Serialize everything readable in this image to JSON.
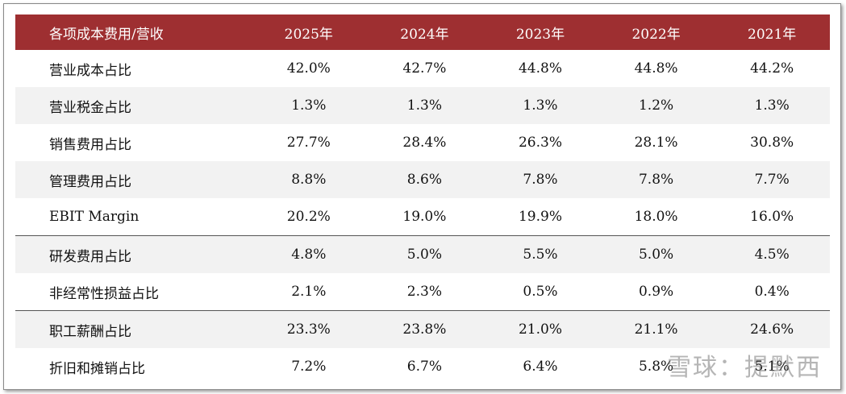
{
  "table": {
    "header": [
      "各项成本费用/营收",
      "2025年",
      "2024年",
      "2023年",
      "2022年",
      "2021年"
    ],
    "rows": [
      [
        "营业成本占比",
        "42.0%",
        "42.7%",
        "44.8%",
        "44.8%",
        "44.2%"
      ],
      [
        "营业税金占比",
        "1.3%",
        "1.3%",
        "1.3%",
        "1.2%",
        "1.3%"
      ],
      [
        "销售费用占比",
        "27.7%",
        "28.4%",
        "26.3%",
        "28.1%",
        "30.8%"
      ],
      [
        "管理费用占比",
        "8.8%",
        "8.6%",
        "7.8%",
        "7.8%",
        "7.7%"
      ],
      [
        "EBIT Margin",
        "20.2%",
        "19.0%",
        "19.9%",
        "18.0%",
        "16.0%"
      ],
      [
        "研发费用占比",
        "4.8%",
        "5.0%",
        "5.5%",
        "5.0%",
        "4.5%"
      ],
      [
        "非经常性损益占比",
        "2.1%",
        "2.3%",
        "0.5%",
        "0.9%",
        "0.4%"
      ],
      [
        "职工薪酬占比",
        "23.3%",
        "23.8%",
        "21.0%",
        "21.1%",
        "24.6%"
      ],
      [
        "折旧和摊销占比",
        "7.2%",
        "6.7%",
        "6.4%",
        "5.8%",
        "5.1%"
      ]
    ]
  },
  "watermark": "雪球：提默西"
}
